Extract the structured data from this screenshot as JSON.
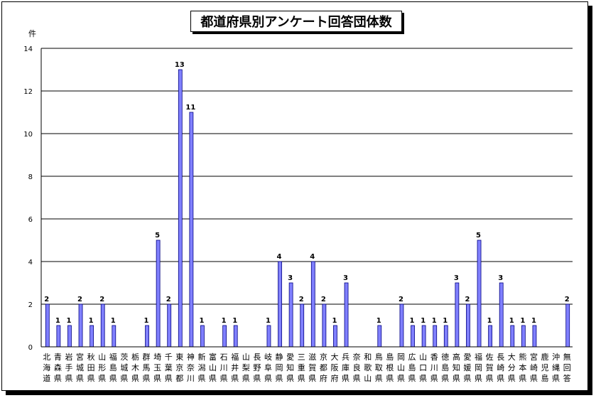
{
  "chart_data": {
    "type": "bar",
    "title": "都道府県別アンケート回答団体数",
    "ylabel": "件",
    "xlabel": "",
    "ylim": [
      0,
      14
    ],
    "yticks": [
      0,
      2,
      4,
      6,
      8,
      10,
      12,
      14
    ],
    "grid": true,
    "colors": {
      "bar": "#8080ff",
      "bar_edge": "#000080",
      "grid": "#000000"
    },
    "categories": [
      "北海道",
      "青森県",
      "岩手県",
      "宮城県",
      "秋田県",
      "山形県",
      "福島県",
      "茨城県",
      "栃木県",
      "群馬県",
      "埼玉県",
      "千葉県",
      "東京都",
      "神奈川",
      "新潟県",
      "富山県",
      "石川県",
      "福井県",
      "山梨県",
      "長野県",
      "岐阜県",
      "静岡県",
      "愛知県",
      "三重県",
      "滋賀県",
      "京都府",
      "大阪府",
      "兵庫県",
      "奈良県",
      "和歌山",
      "鳥取県",
      "島根県",
      "岡山県",
      "広島県",
      "山口県",
      "香川県",
      "徳島県",
      "高知県",
      "愛媛県",
      "福岡県",
      "佐賀県",
      "長崎県",
      "大分県",
      "熊本県",
      "宮崎県",
      "鹿児島",
      "沖縄県",
      "無回答"
    ],
    "values": [
      2,
      1,
      1,
      2,
      1,
      2,
      1,
      0,
      0,
      1,
      5,
      2,
      13,
      11,
      1,
      0,
      1,
      1,
      0,
      0,
      1,
      4,
      3,
      2,
      4,
      2,
      1,
      3,
      0,
      0,
      1,
      0,
      2,
      1,
      1,
      1,
      1,
      3,
      2,
      5,
      1,
      3,
      1,
      1,
      1,
      0,
      0,
      2
    ]
  }
}
